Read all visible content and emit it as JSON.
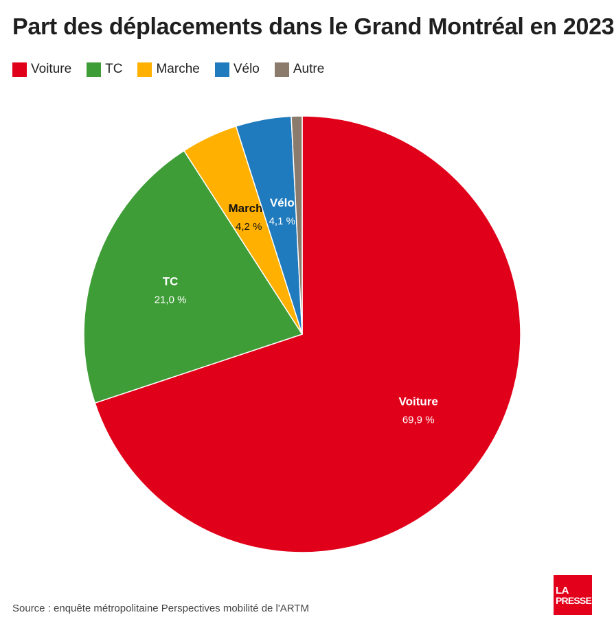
{
  "title": "Part des déplacements dans le Grand Montréal en 2023",
  "source": "Source : enquête métropolitaine Perspectives mobilité de l'ARTM",
  "logo": {
    "line1": "LA",
    "line2": "PRESSE"
  },
  "chart_data": {
    "type": "pie",
    "title": "Part des déplacements dans le Grand Montréal en 2023",
    "legend_position": "top-left",
    "start_angle": "12 o'clock",
    "direction": "clockwise",
    "slices": [
      {
        "name": "Voiture",
        "value": 69.9,
        "value_label": "69,9 %",
        "color": "#e1001a",
        "label_color": "#ffffff",
        "show_label": true
      },
      {
        "name": "TC",
        "value": 21.0,
        "value_label": "21,0 %",
        "color": "#3e9d36",
        "label_color": "#ffffff",
        "show_label": true
      },
      {
        "name": "Marche",
        "value": 4.2,
        "value_label": "4,2 %",
        "color": "#ffb000",
        "label_color": "#111111",
        "show_label": true
      },
      {
        "name": "Vélo",
        "value": 4.1,
        "value_label": "4,1 %",
        "color": "#1f7bbd",
        "label_color": "#ffffff",
        "show_label": true
      },
      {
        "name": "Autre",
        "value": 0.8,
        "value_label": "",
        "color": "#8b7b6c",
        "label_color": "#ffffff",
        "show_label": false
      }
    ]
  }
}
